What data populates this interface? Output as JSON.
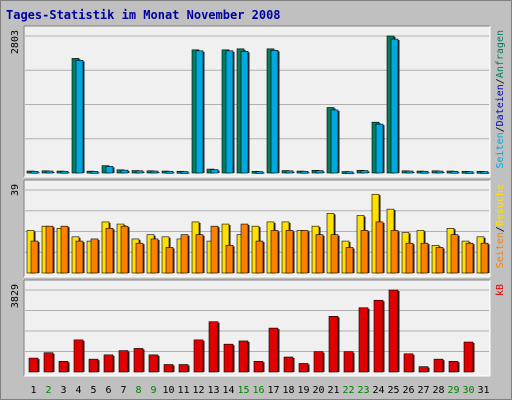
{
  "title": "Tages-Statistik im Monat November 2008",
  "colors": {
    "title": "#0000a0",
    "background": "#c0c0c0",
    "plot_bg": "#f0f0f0",
    "grid": "#b0b0b0",
    "border_dark": "#808080",
    "border_light": "#ffffff",
    "anfragen": "#008060",
    "dateien": "#0000c0",
    "seiten": "#00a8e0",
    "besuche": "#ff8000",
    "kb": "#e00000",
    "weekend_day": "#008000",
    "weekday": "#000000",
    "sep": "#000000"
  },
  "chart_data": [
    {
      "type": "bar",
      "name": "top-panel",
      "max_label": "2803",
      "ymax": 2803,
      "grid": true,
      "right_legend": [
        {
          "text": "Seiten",
          "color": "#00a8e0"
        },
        {
          "text": "/",
          "color": "#000000"
        },
        {
          "text": "Dateien",
          "color": "#0000c0"
        },
        {
          "text": "/",
          "color": "#000000"
        },
        {
          "text": "Anfragen",
          "color": "#008060"
        }
      ],
      "categories": [
        "1",
        "2",
        "3",
        "4",
        "5",
        "6",
        "7",
        "8",
        "9",
        "10",
        "11",
        "12",
        "13",
        "14",
        "15",
        "16",
        "17",
        "18",
        "19",
        "20",
        "21",
        "22",
        "23",
        "24",
        "25",
        "26",
        "27",
        "28",
        "29",
        "30",
        "31"
      ],
      "series": [
        {
          "name": "Anfragen",
          "values": [
            40,
            45,
            40,
            2345,
            38,
            150,
            65,
            50,
            45,
            40,
            35,
            2520,
            80,
            2520,
            2540,
            35,
            2540,
            50,
            40,
            55,
            1340,
            30,
            55,
            1040,
            2803,
            45,
            40,
            45,
            40,
            35,
            35
          ]
        },
        {
          "name": "Seiten",
          "values": [
            35,
            40,
            35,
            2305,
            33,
            135,
            58,
            45,
            40,
            35,
            30,
            2500,
            70,
            2500,
            2490,
            30,
            2510,
            45,
            35,
            50,
            1290,
            26,
            50,
            1000,
            2740,
            40,
            35,
            40,
            35,
            30,
            30
          ]
        }
      ]
    },
    {
      "type": "bar",
      "name": "middle-panel",
      "max_label": "39",
      "ymax": 39,
      "grid": true,
      "right_legend": [
        {
          "text": "Seiten",
          "color": "#ff8000"
        },
        {
          "text": "/",
          "color": "#000000"
        },
        {
          "text": "Besuche",
          "color": "#ffe000"
        }
      ],
      "categories": [
        "1",
        "2",
        "3",
        "4",
        "5",
        "6",
        "7",
        "8",
        "9",
        "10",
        "11",
        "12",
        "13",
        "14",
        "15",
        "16",
        "17",
        "18",
        "19",
        "20",
        "21",
        "22",
        "23",
        "24",
        "25",
        "26",
        "27",
        "28",
        "29",
        "30",
        "31"
      ],
      "series": [
        {
          "name": "Besuche",
          "values": [
            20,
            22,
            21,
            17,
            15,
            24,
            23,
            16,
            18,
            17,
            16,
            24,
            15,
            23,
            18,
            22,
            24,
            24,
            20,
            22,
            28,
            15,
            27,
            37,
            30,
            19,
            20,
            13,
            21,
            15,
            17
          ]
        },
        {
          "name": "Seiten",
          "values": [
            15,
            22,
            22,
            15,
            16,
            21,
            22,
            14,
            16,
            12,
            18,
            18,
            22,
            13,
            23,
            15,
            20,
            20,
            20,
            18,
            18,
            12,
            20,
            24,
            20,
            14,
            14,
            12,
            18,
            14,
            14
          ]
        }
      ]
    },
    {
      "type": "bar",
      "name": "bottom-panel",
      "max_label": "3829",
      "ymax": 3829,
      "grid": true,
      "right_legend": [
        {
          "text": "kB",
          "color": "#e00000"
        }
      ],
      "categories": [
        "1",
        "2",
        "3",
        "4",
        "5",
        "6",
        "7",
        "8",
        "9",
        "10",
        "11",
        "12",
        "13",
        "14",
        "15",
        "16",
        "17",
        "18",
        "19",
        "20",
        "21",
        "22",
        "23",
        "24",
        "25",
        "26",
        "27",
        "28",
        "29",
        "30",
        "31"
      ],
      "series": [
        {
          "name": "kB",
          "values": [
            650,
            900,
            500,
            1500,
            600,
            800,
            1000,
            1100,
            800,
            350,
            350,
            1500,
            2350,
            1300,
            1450,
            500,
            2050,
            700,
            400,
            950,
            2600,
            950,
            3000,
            3350,
            3829,
            850,
            250,
            600,
            500,
            1400,
            0
          ]
        }
      ]
    }
  ],
  "weekend_days": [
    2,
    8,
    9,
    15,
    16,
    22,
    23,
    29,
    30
  ]
}
